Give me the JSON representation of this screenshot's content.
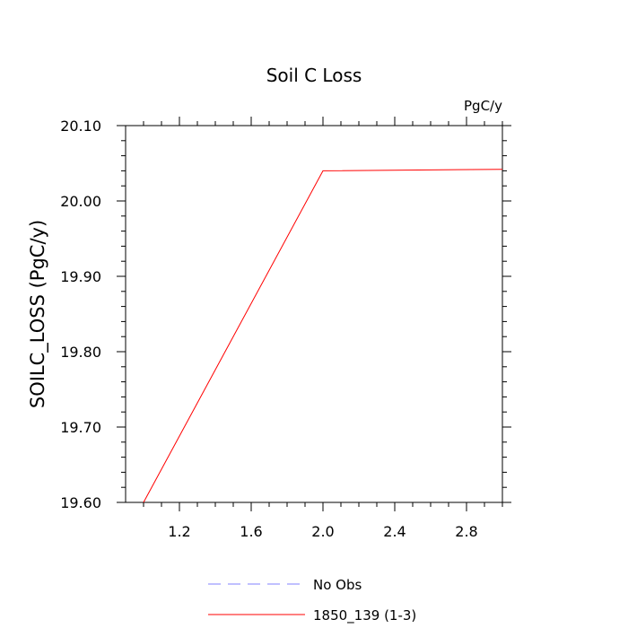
{
  "chart_data": {
    "type": "line",
    "title": "Soil C Loss",
    "units_label": "PgC/y",
    "ylabel": "SOILC_LOSS  (PgC/y)",
    "xlabel": "",
    "xlim": [
      0.9,
      3.0
    ],
    "ylim": [
      19.6,
      20.1
    ],
    "x_ticks": [
      1.2,
      1.6,
      2.0,
      2.4,
      2.8
    ],
    "x_tick_labels": [
      "1.2",
      "1.6",
      "2.0",
      "2.4",
      "2.8"
    ],
    "y_ticks": [
      19.6,
      19.7,
      19.8,
      19.9,
      20.0,
      20.1
    ],
    "y_tick_labels": [
      "19.60",
      "19.70",
      "19.80",
      "19.90",
      "20.00",
      "20.10"
    ],
    "grid": false,
    "legend_position": "bottom",
    "series": [
      {
        "name": "No Obs",
        "x": [],
        "y": [],
        "color": "#8080ff",
        "dash": true
      },
      {
        "name": "1850_139 (1-3)",
        "x": [
          1,
          2,
          3
        ],
        "y": [
          19.6,
          20.04,
          20.042
        ],
        "color": "#ff0000",
        "dash": false
      }
    ]
  }
}
